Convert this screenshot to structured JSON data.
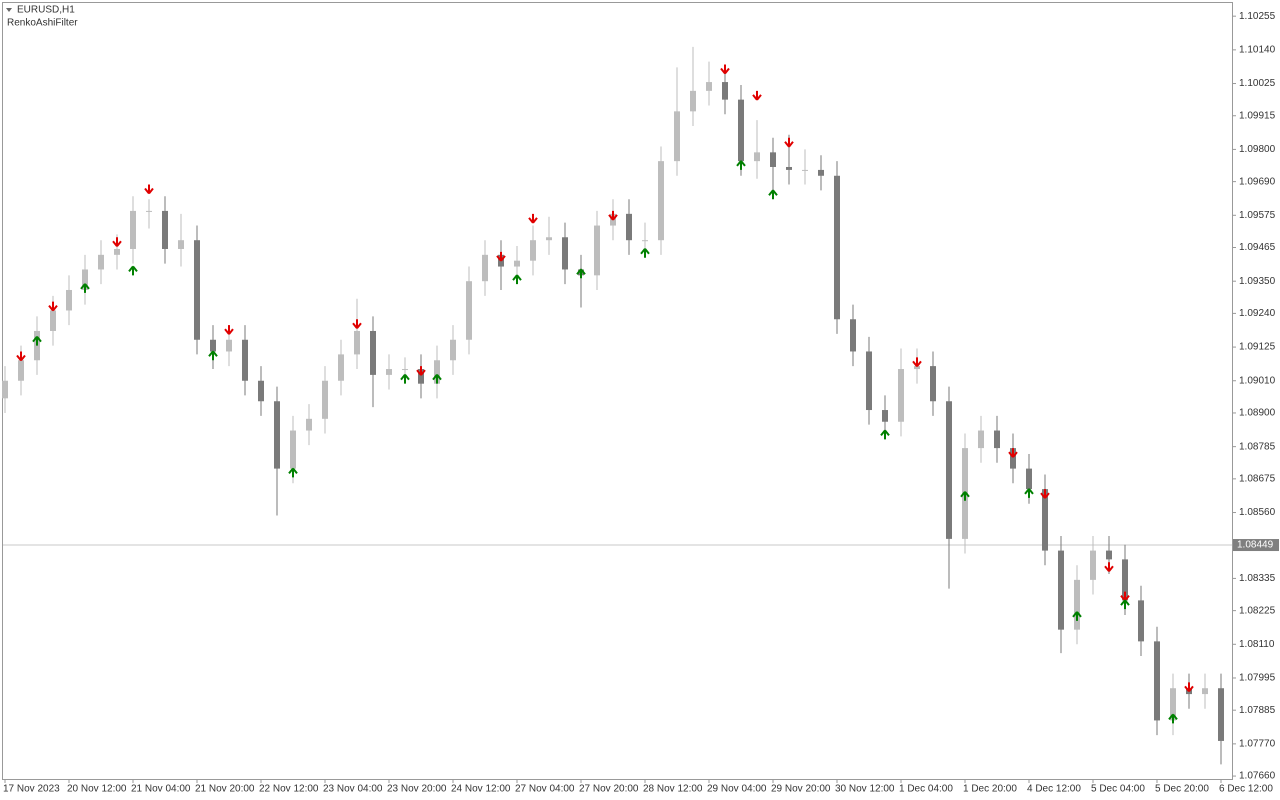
{
  "chart_data": {
    "type": "candlestick",
    "symbol": "EURUSD,H1",
    "indicator": "RenkoAshiFilter",
    "up_color": "#bdbdbd",
    "down_color": "#7a7a7a",
    "buy_color": "#008000",
    "sell_color": "#e00000",
    "categories": [
      "17 Nov 2023",
      null,
      null,
      null,
      "20 Nov 12:00",
      null,
      null,
      null,
      "21 Nov 04:00",
      null,
      null,
      null,
      "21 Nov 20:00",
      null,
      null,
      null,
      "22 Nov 12:00",
      null,
      null,
      null,
      "23 Nov 04:00",
      null,
      null,
      null,
      "23 Nov 20:00",
      null,
      null,
      null,
      "24 Nov 12:00",
      null,
      null,
      null,
      "27 Nov 04:00",
      null,
      null,
      null,
      "27 Nov 20:00",
      null,
      null,
      null,
      "28 Nov 12:00",
      null,
      null,
      null,
      "29 Nov 04:00",
      null,
      null,
      null,
      "29 Nov 20:00",
      null,
      null,
      null,
      "30 Nov 12:00",
      null,
      null,
      null,
      "1 Dec 04:00",
      null,
      null,
      null,
      "1 Dec 20:00",
      null,
      null,
      null,
      "4 Dec 12:00",
      null,
      null,
      null,
      "5 Dec 04:00",
      null,
      null,
      null,
      "5 Dec 20:00",
      null,
      null,
      null,
      "6 Dec 12:00"
    ],
    "open": [
      1.0895,
      1.0901,
      1.0908,
      1.0918,
      1.0925,
      1.0932,
      1.0939,
      1.0944,
      1.0946,
      1.0959,
      1.0959,
      1.0946,
      1.0949,
      1.0915,
      1.0911,
      1.0915,
      1.0901,
      1.0894,
      1.0871,
      1.0884,
      1.0888,
      1.0901,
      1.091,
      1.0918,
      1.0903,
      1.0905,
      1.0905,
      1.09,
      1.0908,
      1.0915,
      1.0935,
      1.0944,
      1.094,
      1.0942,
      1.0949,
      1.095,
      1.0939,
      1.0937,
      1.0954,
      1.0958,
      1.0949,
      1.0949,
      1.0976,
      1.0993,
      1.1,
      1.1003,
      1.0997,
      1.0976,
      1.0979,
      1.0974,
      1.0973,
      1.0973,
      1.0971,
      1.0922,
      1.0911,
      1.0891,
      1.0887,
      1.0905,
      1.0906,
      1.0894,
      1.0847,
      1.0878,
      1.0884,
      1.0878,
      1.0871,
      1.0864,
      1.0843,
      1.0816,
      1.0833,
      1.0843,
      1.084,
      1.0826,
      1.0812,
      1.0785,
      1.0796,
      1.0794,
      1.0796
    ],
    "high": [
      1.0906,
      1.0913,
      1.0923,
      1.093,
      1.0937,
      1.0944,
      1.0949,
      1.0951,
      1.0964,
      1.0963,
      1.0964,
      1.0958,
      1.0954,
      1.092,
      1.092,
      1.092,
      1.0906,
      1.0899,
      1.0889,
      1.0893,
      1.0906,
      1.0915,
      1.0929,
      1.0923,
      1.091,
      1.0909,
      1.091,
      1.0913,
      1.092,
      1.094,
      1.0949,
      1.0949,
      1.0947,
      1.0954,
      1.0957,
      1.0955,
      1.0944,
      1.0959,
      1.0963,
      1.0963,
      1.0955,
      1.0981,
      1.1008,
      1.1015,
      1.101,
      1.1008,
      1.1002,
      1.099,
      1.0984,
      1.0985,
      1.098,
      1.0978,
      1.0976,
      1.0927,
      1.0916,
      1.0896,
      1.0912,
      1.0912,
      1.0911,
      1.0899,
      1.0883,
      1.0889,
      1.0889,
      1.0883,
      1.0876,
      1.0869,
      1.0848,
      1.0838,
      1.0848,
      1.0848,
      1.0845,
      1.0831,
      1.0817,
      1.0801,
      1.0801,
      1.0801,
      1.0801
    ],
    "low": [
      1.089,
      1.0896,
      1.0903,
      1.0913,
      1.092,
      1.0927,
      1.0934,
      1.0939,
      1.0941,
      1.0953,
      1.0941,
      1.094,
      1.091,
      1.0905,
      1.0906,
      1.0896,
      1.0889,
      1.0855,
      1.0866,
      1.0879,
      1.0883,
      1.0896,
      1.0905,
      1.0892,
      1.0898,
      1.09,
      1.0895,
      1.0895,
      1.0903,
      1.091,
      1.093,
      1.0932,
      1.0935,
      1.0937,
      1.0944,
      1.0934,
      1.0926,
      1.0932,
      1.0949,
      1.0944,
      1.0944,
      1.0944,
      1.0971,
      1.0988,
      1.0995,
      1.0992,
      1.0971,
      1.097,
      1.0964,
      1.0968,
      1.0968,
      1.0966,
      1.0917,
      1.0906,
      1.0886,
      1.0882,
      1.0882,
      1.09,
      1.0889,
      1.083,
      1.0842,
      1.0873,
      1.0873,
      1.0866,
      1.0859,
      1.0838,
      1.0808,
      1.0811,
      1.0828,
      1.0835,
      1.0821,
      1.0807,
      1.078,
      1.078,
      1.0789,
      1.0789,
      1.077
    ],
    "close": [
      1.0901,
      1.0908,
      1.0918,
      1.0925,
      1.0932,
      1.0939,
      1.0944,
      1.0946,
      1.0959,
      1.0959,
      1.0946,
      1.0949,
      1.0915,
      1.0911,
      1.0915,
      1.0901,
      1.0894,
      1.0871,
      1.0884,
      1.0888,
      1.0901,
      1.091,
      1.0918,
      1.0903,
      1.0905,
      1.0905,
      1.09,
      1.0908,
      1.0915,
      1.0935,
      1.0944,
      1.094,
      1.0942,
      1.0949,
      1.095,
      1.0939,
      1.0937,
      1.0954,
      1.0958,
      1.0949,
      1.0949,
      1.0976,
      1.0993,
      1.1,
      1.1003,
      1.0997,
      1.0976,
      1.0979,
      1.0974,
      1.0973,
      1.0973,
      1.0971,
      1.0922,
      1.0911,
      1.0891,
      1.0887,
      1.0905,
      1.0906,
      1.0894,
      1.0847,
      1.0878,
      1.0884,
      1.0878,
      1.0871,
      1.0864,
      1.0843,
      1.0816,
      1.0833,
      1.0843,
      1.084,
      1.0826,
      1.0812,
      1.0785,
      1.0796,
      1.0794,
      1.0796,
      1.0778
    ],
    "sell_signals": [
      null,
      1.0911,
      null,
      1.0928,
      null,
      null,
      null,
      1.095,
      null,
      1.0968,
      null,
      null,
      null,
      null,
      1.092,
      null,
      null,
      null,
      null,
      null,
      null,
      null,
      1.0922,
      null,
      null,
      null,
      1.0906,
      null,
      null,
      null,
      null,
      1.0945,
      null,
      1.0958,
      null,
      null,
      null,
      null,
      1.0959,
      null,
      null,
      null,
      null,
      null,
      null,
      1.1009,
      null,
      1.1,
      null,
      1.0984,
      null,
      null,
      null,
      null,
      null,
      null,
      null,
      1.0909,
      null,
      null,
      null,
      null,
      null,
      1.0878,
      null,
      1.0864,
      null,
      null,
      null,
      1.0839,
      1.0829,
      null,
      null,
      null,
      1.0798,
      null,
      null
    ],
    "buy_signals": [
      null,
      null,
      1.0913,
      null,
      null,
      1.0931,
      null,
      null,
      1.0937,
      null,
      null,
      null,
      null,
      1.0908,
      null,
      null,
      null,
      null,
      1.0868,
      null,
      null,
      null,
      null,
      null,
      null,
      1.09,
      null,
      1.09,
      null,
      null,
      null,
      null,
      1.0934,
      null,
      null,
      null,
      1.0936,
      null,
      null,
      null,
      1.0943,
      null,
      null,
      null,
      null,
      null,
      1.0973,
      null,
      1.0963,
      null,
      null,
      null,
      null,
      null,
      null,
      1.0881,
      null,
      null,
      null,
      null,
      1.086,
      null,
      null,
      null,
      1.0861,
      null,
      null,
      1.0819,
      null,
      null,
      1.0823,
      null,
      null,
      1.0784,
      null,
      null,
      null
    ],
    "current_price": 1.08449,
    "ylim": [
      1.0765,
      1.103
    ],
    "yticks": [
      1.10255,
      {
        "value": 1.1014,
        "label": "1.10140"
      },
      1.10025,
      1.09915,
      {
        "value": 1.098,
        "label": "1.09800"
      },
      {
        "value": 1.0969,
        "label": "1.09690"
      },
      1.09575,
      1.09465,
      {
        "value": 1.0935,
        "label": "1.09350"
      },
      {
        "value": 1.0924,
        "label": "1.09240"
      },
      1.09125,
      {
        "value": 1.0901,
        "label": "1.09010"
      },
      {
        "value": 1.089,
        "label": "1.08900"
      },
      1.08785,
      1.08675,
      {
        "value": 1.0856,
        "label": "1.08560"
      },
      1.08335,
      1.08225,
      {
        "value": 1.0811,
        "label": "1.08110"
      },
      1.07995,
      1.07885,
      {
        "value": 1.0777,
        "label": "1.07770"
      },
      {
        "value": 1.0766,
        "label": "1.07660"
      }
    ]
  }
}
